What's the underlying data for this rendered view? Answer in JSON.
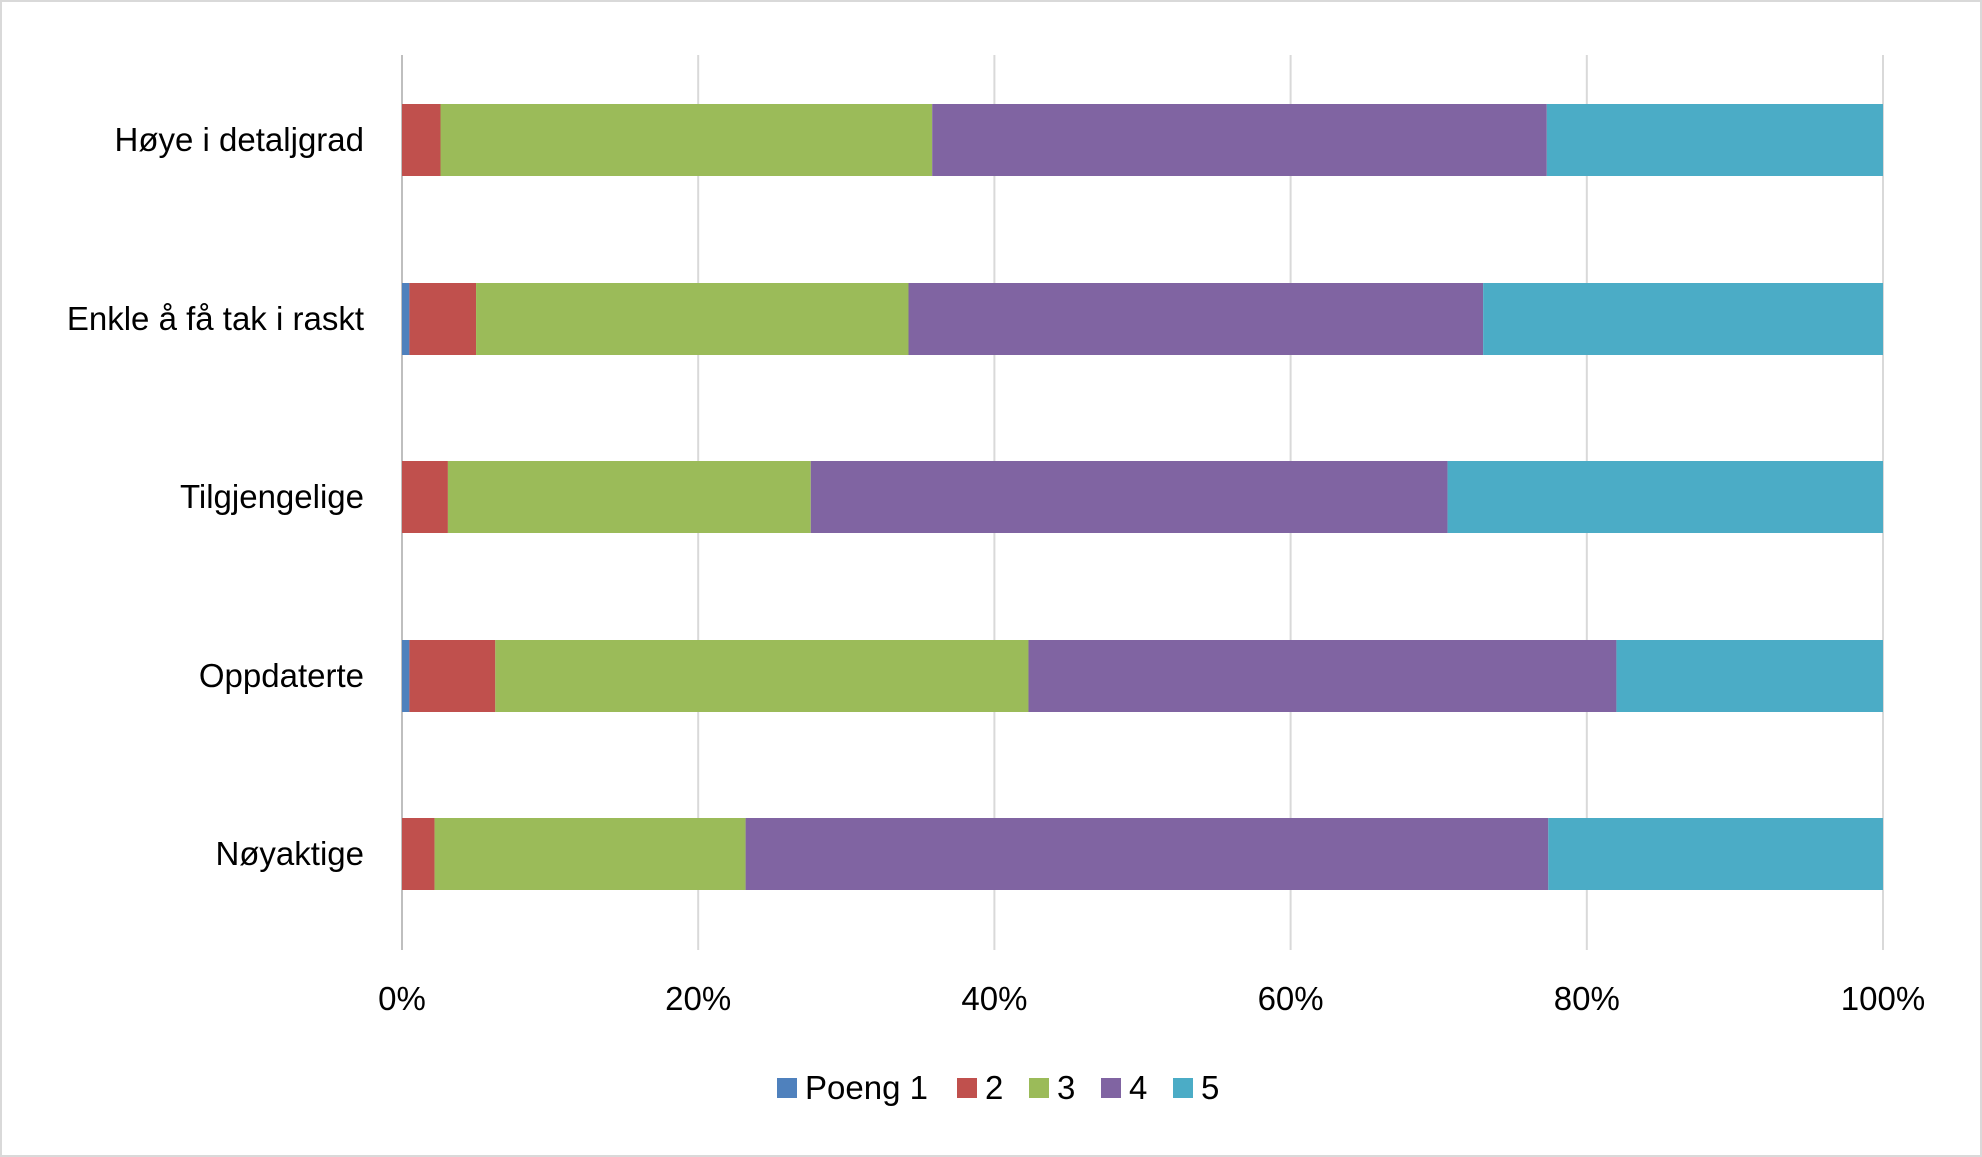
{
  "chart_data": {
    "type": "bar",
    "orientation": "horizontal",
    "stacked": "percent",
    "categories": [
      "Høye i detaljgrad",
      "Enkle å få tak i raskt",
      "Tilgjengelige",
      "Oppdaterte",
      "Nøyaktige"
    ],
    "series": [
      {
        "name": "Poeng 1",
        "color": "#4f81bd",
        "values": [
          0,
          0.5,
          0,
          0.5,
          0
        ]
      },
      {
        "name": "2",
        "color": "#c0504d",
        "values": [
          2.6,
          4.5,
          3.1,
          5.8,
          2.2
        ]
      },
      {
        "name": "3",
        "color": "#9bbb59",
        "values": [
          33.2,
          29.2,
          24.5,
          36.0,
          21.0
        ]
      },
      {
        "name": "4",
        "color": "#8064a2",
        "values": [
          41.5,
          38.8,
          43.0,
          39.7,
          54.2
        ]
      },
      {
        "name": "5",
        "color": "#4bacc6",
        "values": [
          22.7,
          27.0,
          29.4,
          18.0,
          22.6
        ]
      }
    ],
    "xlim": [
      0,
      100
    ],
    "xticks": [
      "0%",
      "20%",
      "40%",
      "60%",
      "80%",
      "100%"
    ],
    "grid": true,
    "legend_position": "bottom"
  }
}
